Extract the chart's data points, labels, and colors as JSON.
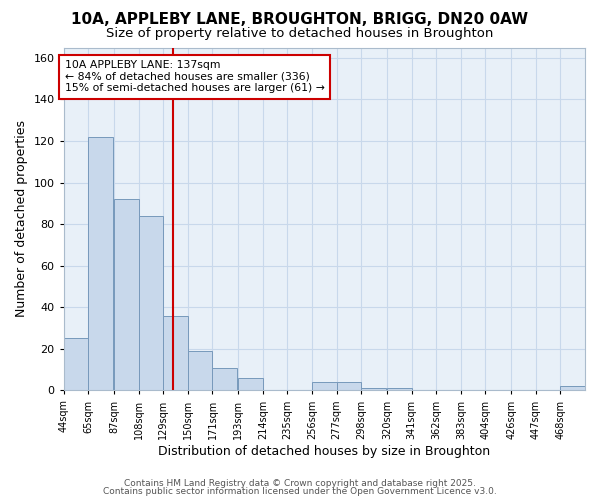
{
  "title": "10A, APPLEBY LANE, BROUGHTON, BRIGG, DN20 0AW",
  "subtitle": "Size of property relative to detached houses in Broughton",
  "xlabel": "Distribution of detached houses by size in Broughton",
  "ylabel": "Number of detached properties",
  "bins": [
    44,
    65,
    87,
    108,
    129,
    150,
    171,
    193,
    214,
    235,
    256,
    277,
    298,
    320,
    341,
    362,
    383,
    404,
    426,
    447,
    468
  ],
  "values": [
    25,
    122,
    92,
    84,
    36,
    19,
    11,
    6,
    0,
    0,
    4,
    4,
    1,
    1,
    0,
    0,
    0,
    0,
    0,
    0,
    2
  ],
  "bar_color": "#c8d8eb",
  "bar_edge_color": "#7799bb",
  "property_size": 137,
  "red_line_color": "#cc0000",
  "annotation_text": "10A APPLEBY LANE: 137sqm\n← 84% of detached houses are smaller (336)\n15% of semi-detached houses are larger (61) →",
  "annotation_box_color": "#cc0000",
  "ylim": [
    0,
    165
  ],
  "yticks": [
    0,
    20,
    40,
    60,
    80,
    100,
    120,
    140,
    160
  ],
  "grid_color": "#c8d8eb",
  "background_color": "#e8f0f8",
  "footer_line1": "Contains HM Land Registry data © Crown copyright and database right 2025.",
  "footer_line2": "Contains public sector information licensed under the Open Government Licence v3.0.",
  "title_fontsize": 11,
  "subtitle_fontsize": 9.5
}
